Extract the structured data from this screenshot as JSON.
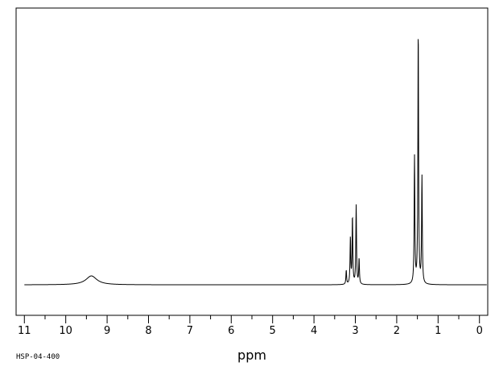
{
  "chart_data": {
    "type": "line",
    "title": "",
    "xlabel": "ppm",
    "ylabel": "",
    "xlim": [
      11.2,
      -0.2
    ],
    "ylim": [
      -0.12,
      1.0
    ],
    "x_reversed": true,
    "grid": false,
    "tick_values": [
      11,
      10,
      9,
      8,
      7,
      6,
      5,
      4,
      3,
      2,
      1,
      0
    ],
    "tick_labels": [
      "11",
      "10",
      "9",
      "8",
      "7",
      "6",
      "5",
      "4",
      "3",
      "2",
      "1",
      "0"
    ],
    "minor_tick_step": 0.5,
    "series": [
      {
        "peaks": [
          {
            "ppm": 9.38,
            "height": 0.035,
            "width": 0.16
          },
          {
            "ppm": 3.22,
            "height": 0.055,
            "width": 0.01
          },
          {
            "ppm": 3.12,
            "height": 0.18,
            "width": 0.01
          },
          {
            "ppm": 3.07,
            "height": 0.265,
            "width": 0.01
          },
          {
            "ppm": 2.98,
            "height": 0.31,
            "width": 0.01
          },
          {
            "ppm": 2.91,
            "height": 0.1,
            "width": 0.01
          },
          {
            "ppm": 1.57,
            "height": 0.5,
            "width": 0.01
          },
          {
            "ppm": 1.48,
            "height": 1.0,
            "width": 0.01
          },
          {
            "ppm": 1.39,
            "height": 0.42,
            "width": 0.01
          }
        ]
      }
    ]
  },
  "footer": {
    "code": "HSP-04-400"
  }
}
